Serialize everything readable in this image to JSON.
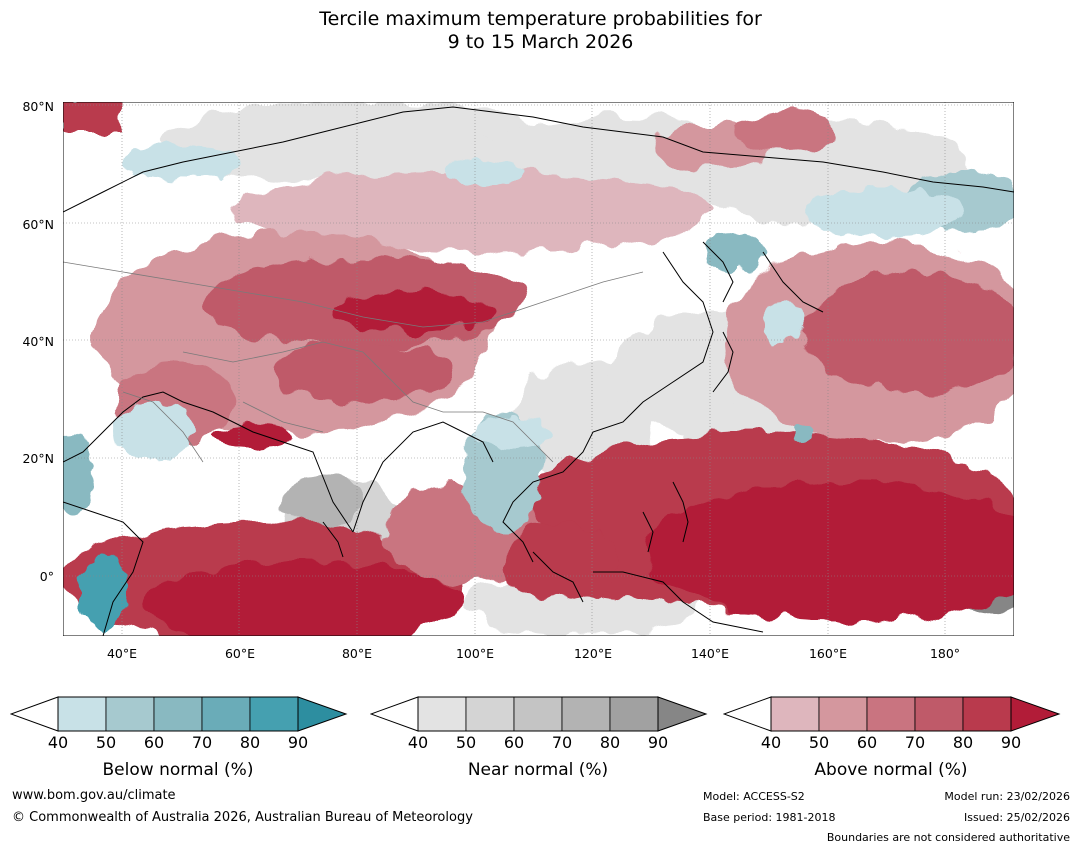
{
  "title": {
    "line1": "Tercile maximum temperature probabilities for",
    "line2": "9 to 15 March 2026"
  },
  "map": {
    "lat_labels": [
      "80°N",
      "60°N",
      "40°N",
      "20°N",
      "0°"
    ],
    "lon_labels": [
      "40°E",
      "60°E",
      "80°E",
      "100°E",
      "120°E",
      "140°E",
      "160°E",
      "180°"
    ],
    "lon_range": [
      30,
      191
    ],
    "lat_range": [
      -10,
      80
    ]
  },
  "legend": {
    "below": {
      "label": "Below normal (%)",
      "ticks": [
        "40",
        "50",
        "60",
        "70",
        "80",
        "90"
      ],
      "colors": [
        "#ffffff",
        "#c8e1e7",
        "#a6c9cf",
        "#89b9c1",
        "#6aacb8",
        "#45a0b0",
        "#2d8ea0"
      ]
    },
    "near": {
      "label": "Near normal (%)",
      "ticks": [
        "40",
        "50",
        "60",
        "70",
        "80",
        "90"
      ],
      "colors": [
        "#ffffff",
        "#e3e3e3",
        "#d4d4d4",
        "#c4c4c4",
        "#b3b3b3",
        "#a1a1a1",
        "#868686"
      ]
    },
    "above": {
      "label": "Above normal (%)",
      "ticks": [
        "40",
        "50",
        "60",
        "70",
        "80",
        "90"
      ],
      "colors": [
        "#ffffff",
        "#deb6bd",
        "#d4979e",
        "#c97480",
        "#bf5a69",
        "#b93a4d",
        "#b21c38"
      ]
    }
  },
  "footer": {
    "website": "www.bom.gov.au/climate",
    "copyright": "© Commonwealth of Australia 2026, Australian Bureau of Meteorology",
    "model": "Model: ACCESS-S2",
    "base_period": "Base period: 1981-2018",
    "model_run": "Model run: 23/02/2026",
    "issued": "Issued: 25/02/2026",
    "disclaimer": "Boundaries are not considered authoritative"
  }
}
